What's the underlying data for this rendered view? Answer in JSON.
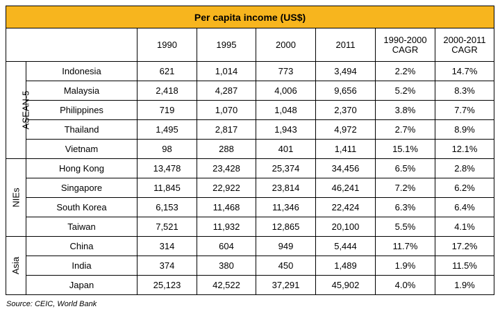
{
  "title": "Per capita income (US$)",
  "columns": [
    "1990",
    "1995",
    "2000",
    "2011",
    "1990-2000\nCAGR",
    "2000-2011\nCAGR"
  ],
  "groups": [
    {
      "name": "ASEAN-5",
      "rows": [
        {
          "country": "Indonesia",
          "values": [
            "621",
            "1,014",
            "773",
            "3,494",
            "2.2%",
            "14.7%"
          ]
        },
        {
          "country": "Malaysia",
          "values": [
            "2,418",
            "4,287",
            "4,006",
            "9,656",
            "5.2%",
            "8.3%"
          ]
        },
        {
          "country": "Philippines",
          "values": [
            "719",
            "1,070",
            "1,048",
            "2,370",
            "3.8%",
            "7.7%"
          ]
        },
        {
          "country": "Thailand",
          "values": [
            "1,495",
            "2,817",
            "1,943",
            "4,972",
            "2.7%",
            "8.9%"
          ]
        },
        {
          "country": "Vietnam",
          "values": [
            "98",
            "288",
            "401",
            "1,411",
            "15.1%",
            "12.1%"
          ]
        }
      ]
    },
    {
      "name": "NIEs",
      "rows": [
        {
          "country": "Hong Kong",
          "values": [
            "13,478",
            "23,428",
            "25,374",
            "34,456",
            "6.5%",
            "2.8%"
          ]
        },
        {
          "country": "Singapore",
          "values": [
            "11,845",
            "22,922",
            "23,814",
            "46,241",
            "7.2%",
            "6.2%"
          ]
        },
        {
          "country": "South Korea",
          "values": [
            "6,153",
            "11,468",
            "11,346",
            "22,424",
            "6.3%",
            "6.4%"
          ]
        },
        {
          "country": "Taiwan",
          "values": [
            "7,521",
            "11,932",
            "12,865",
            "20,100",
            "5.5%",
            "4.1%"
          ]
        }
      ]
    },
    {
      "name": "Asia",
      "rows": [
        {
          "country": "China",
          "values": [
            "314",
            "604",
            "949",
            "5,444",
            "11.7%",
            "17.2%"
          ]
        },
        {
          "country": "India",
          "values": [
            "374",
            "380",
            "450",
            "1,489",
            "1.9%",
            "11.5%"
          ]
        },
        {
          "country": "Japan",
          "values": [
            "25,123",
            "42,522",
            "37,291",
            "45,902",
            "4.0%",
            "1.9%"
          ]
        }
      ]
    }
  ],
  "source": "Source: CEIC, World Bank",
  "colors": {
    "title_bg": "#f7b51e",
    "border": "#000000"
  }
}
